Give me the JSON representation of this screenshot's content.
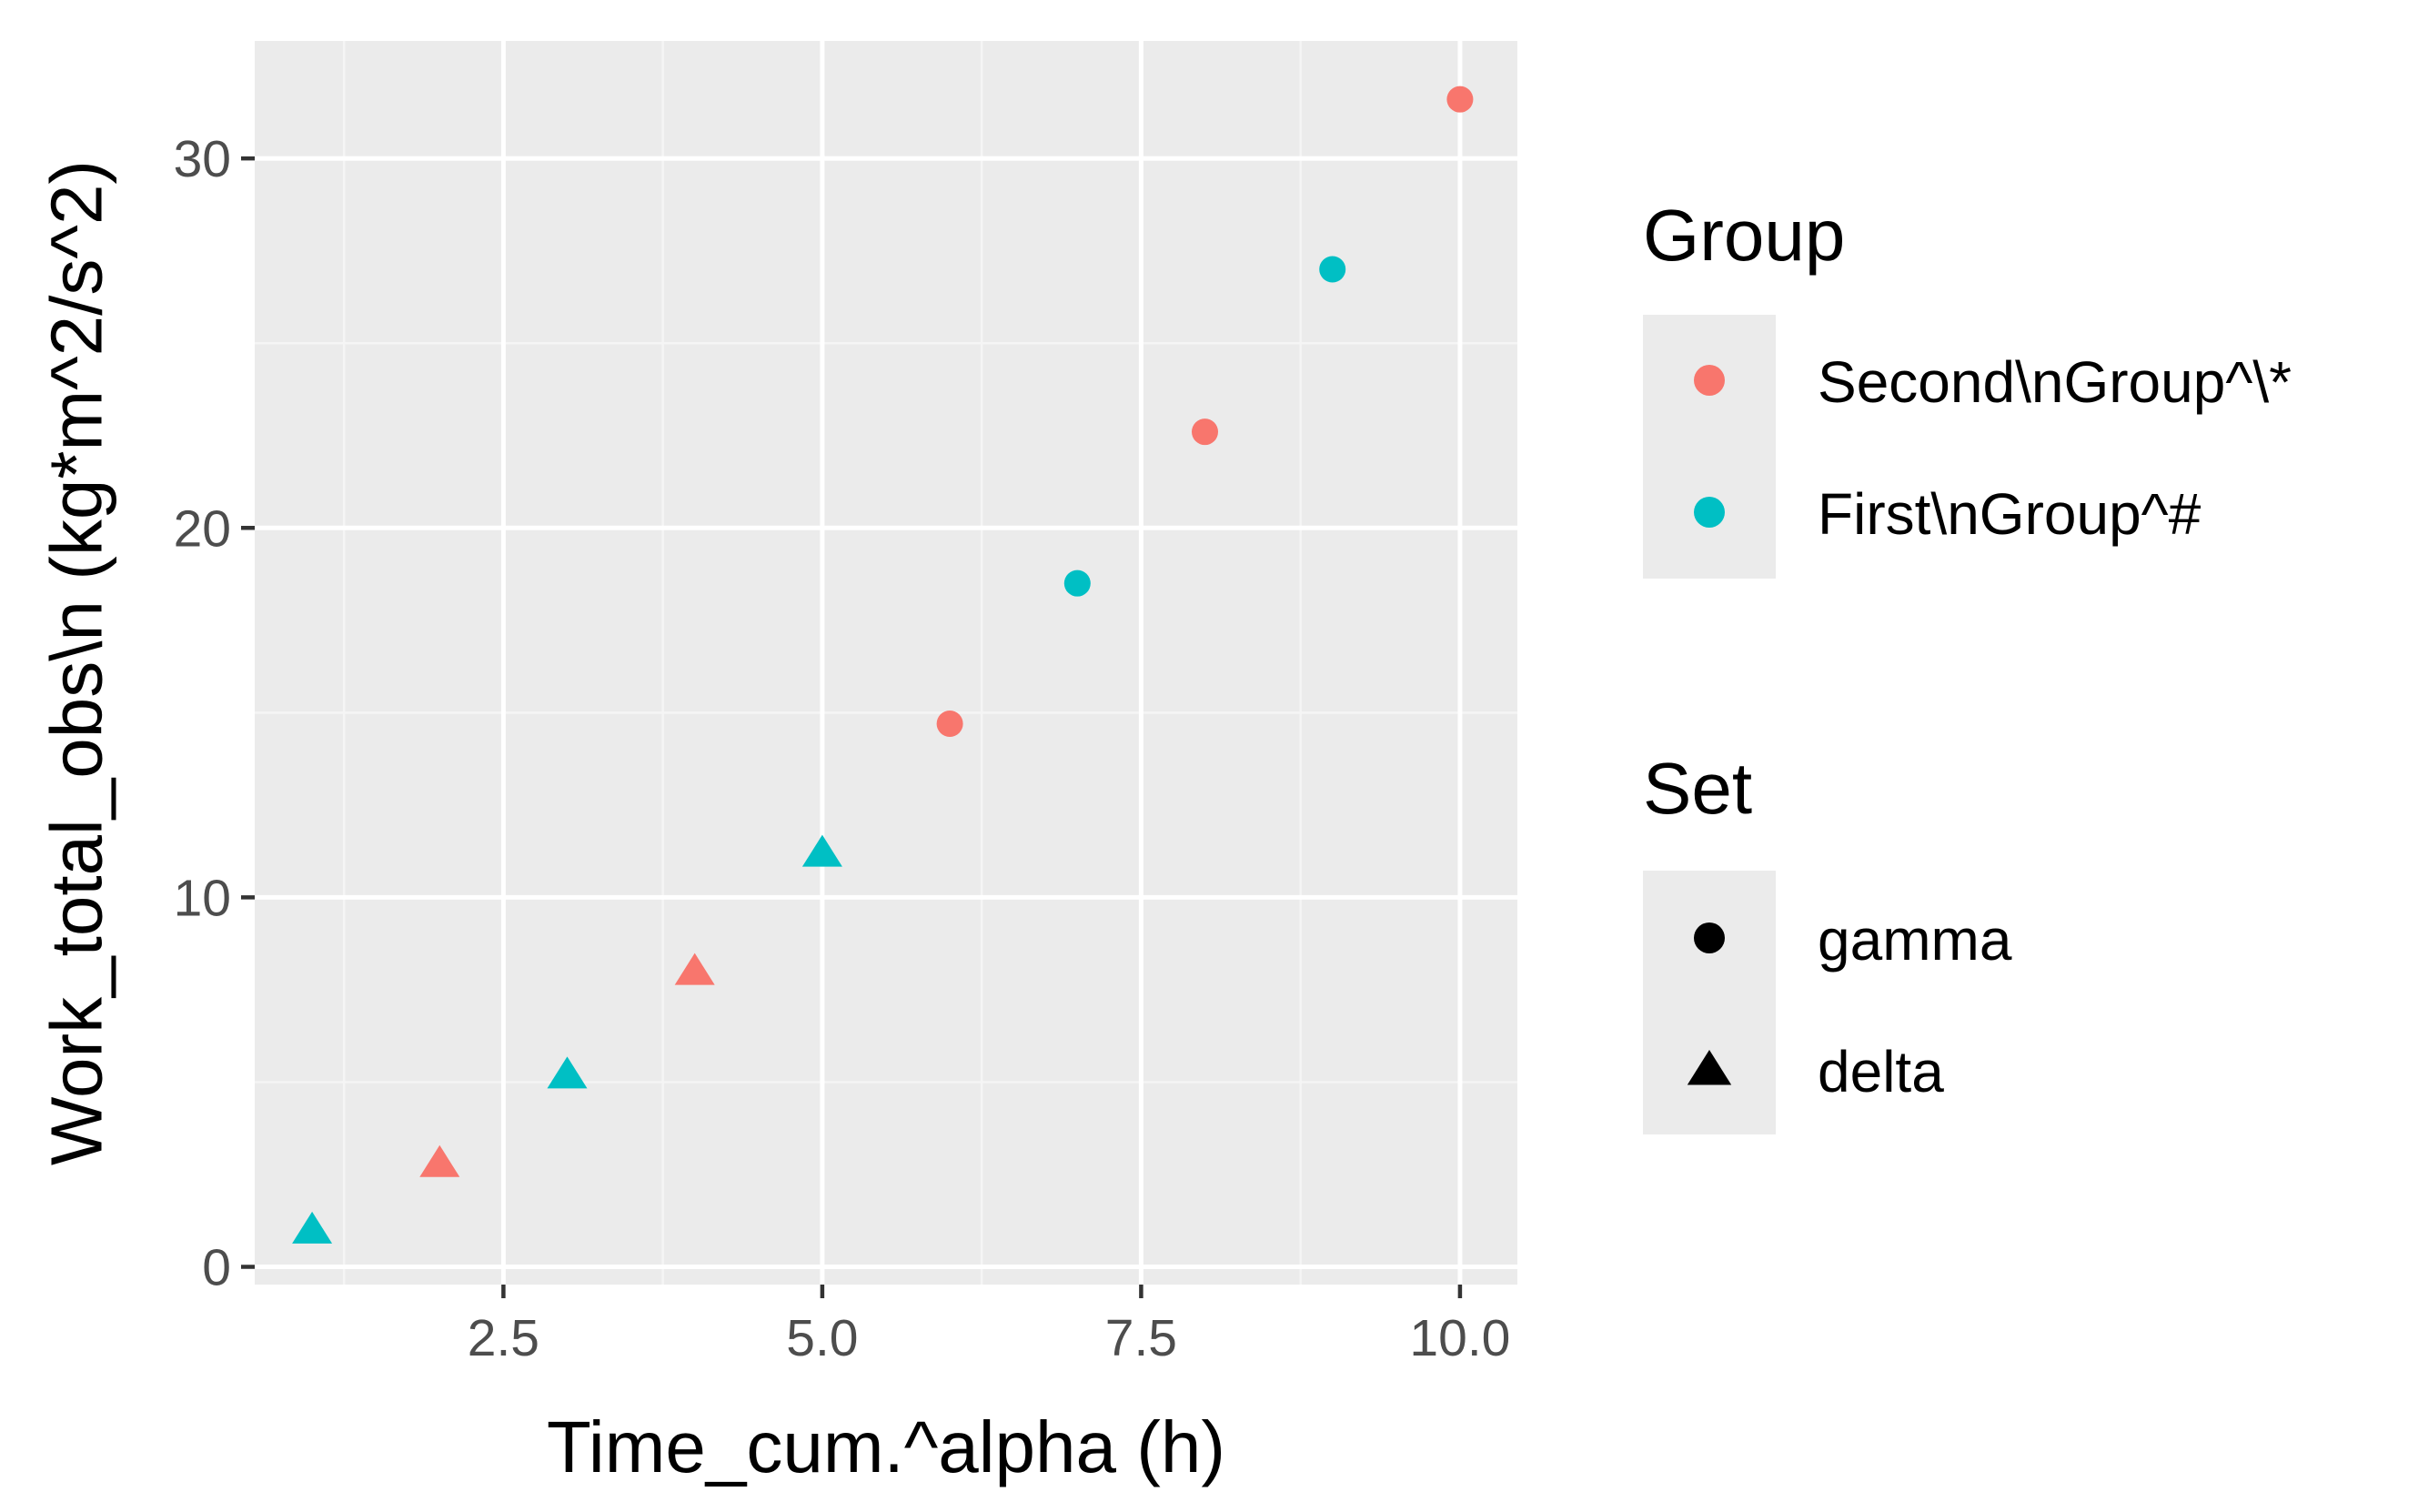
{
  "chart_data": {
    "type": "scatter",
    "title": "",
    "xlabel": "Time_cum.^alpha (h)",
    "ylabel": "Work_total_obs\\n (kg*m^2/s^2)",
    "xlim": [
      0.55,
      10.45
    ],
    "ylim": [
      -0.48,
      33.18
    ],
    "x_ticks": [
      2.5,
      5.0,
      7.5,
      10.0
    ],
    "x_tick_labels": [
      "2.5",
      "5.0",
      "7.5",
      "10.0"
    ],
    "y_ticks": [
      0,
      10,
      20,
      30
    ],
    "y_tick_labels": [
      "0",
      "10",
      "20",
      "30"
    ],
    "grid": true,
    "legend_position": "right",
    "legends": [
      {
        "title": "Group",
        "key_shape": "circle",
        "entries": [
          {
            "label": "Second\\nGroup^\\*",
            "color": "#F8766D"
          },
          {
            "label": "First\\nGroup^#",
            "color": "#00BFC4"
          }
        ]
      },
      {
        "title": "Set",
        "entries": [
          {
            "label": "gamma",
            "shape": "circle"
          },
          {
            "label": "delta",
            "shape": "triangle"
          }
        ]
      }
    ],
    "points": [
      {
        "x": 1,
        "y": 1.0,
        "group": "First\\nGroup^#",
        "set": "delta"
      },
      {
        "x": 2,
        "y": 2.8,
        "group": "Second\\nGroup^\\*",
        "set": "delta"
      },
      {
        "x": 3,
        "y": 5.2,
        "group": "First\\nGroup^#",
        "set": "delta"
      },
      {
        "x": 4,
        "y": 8.0,
        "group": "Second\\nGroup^\\*",
        "set": "delta"
      },
      {
        "x": 5,
        "y": 11.2,
        "group": "First\\nGroup^#",
        "set": "delta"
      },
      {
        "x": 6,
        "y": 14.7,
        "group": "Second\\nGroup^\\*",
        "set": "gamma"
      },
      {
        "x": 7,
        "y": 18.5,
        "group": "First\\nGroup^#",
        "set": "gamma"
      },
      {
        "x": 8,
        "y": 22.6,
        "group": "Second\\nGroup^\\*",
        "set": "gamma"
      },
      {
        "x": 9,
        "y": 27.0,
        "group": "First\\nGroup^#",
        "set": "gamma"
      },
      {
        "x": 10,
        "y": 31.6,
        "group": "Second\\nGroup^\\*",
        "set": "gamma"
      }
    ],
    "colors": {
      "panel_background": "#EBEBEB",
      "grid_major": "#FFFFFF",
      "grid_minor": "#F5F5F5",
      "legend_key_background": "#EBEBEB",
      "axis_ticks": "#333333",
      "tick_text": "#4D4D4D"
    }
  }
}
